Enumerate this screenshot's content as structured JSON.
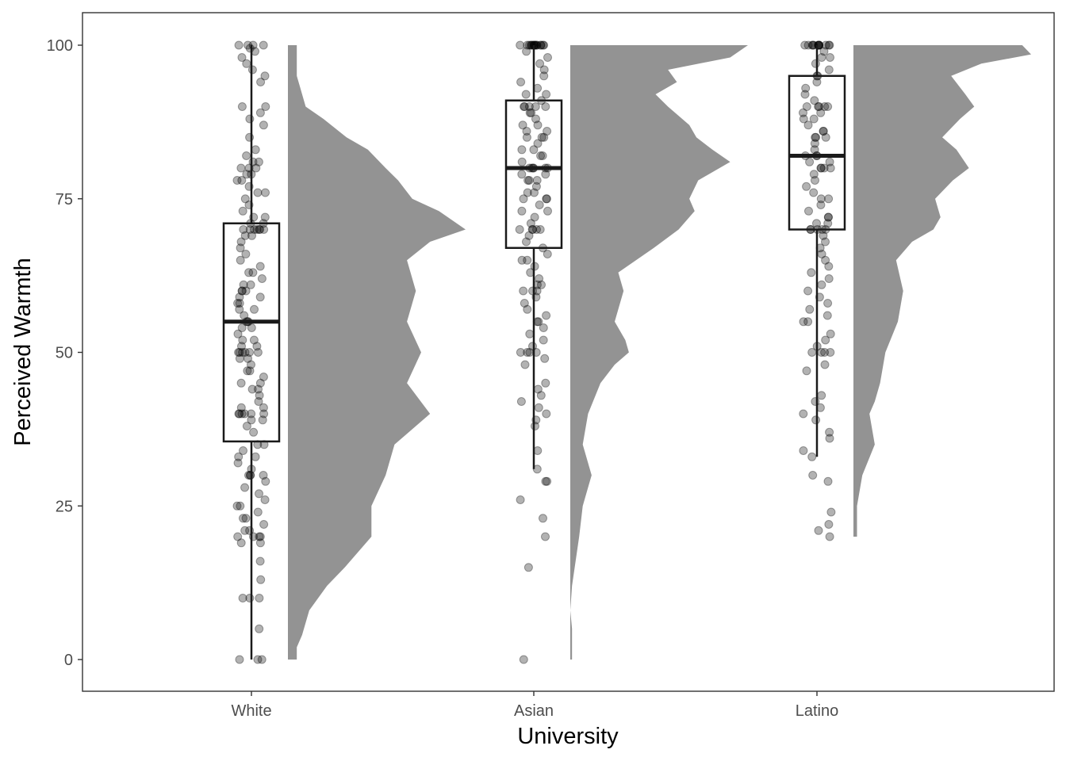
{
  "chart_data": {
    "type": "raincloud",
    "title": "",
    "xlabel": "University",
    "ylabel": "Perceived Warmth",
    "ylim": [
      -5,
      105
    ],
    "yticks": [
      0,
      25,
      50,
      75,
      100
    ],
    "categories": [
      "White",
      "Asian",
      "Latino"
    ],
    "grid": false,
    "colors": {
      "violin": "#939393",
      "points": "#000000",
      "box": "#1a1a1a"
    },
    "boxplots": [
      {
        "category": "White",
        "whisker_low": 0,
        "q1": 35.5,
        "median": 55,
        "q3": 71,
        "whisker_high": 100
      },
      {
        "category": "Asian",
        "whisker_low": 31,
        "q1": 67,
        "median": 80,
        "q3": 91,
        "whisker_high": 100
      },
      {
        "category": "Latino",
        "whisker_low": 33,
        "q1": 70,
        "median": 82,
        "q3": 95,
        "whisker_high": 100
      }
    ],
    "density": [
      {
        "category": "White",
        "range": [
          0,
          100
        ],
        "y": [
          0,
          2,
          4,
          8,
          12,
          15,
          20,
          25,
          30,
          35,
          40,
          45,
          50,
          55,
          60,
          65,
          68,
          70,
          73,
          75,
          78,
          80,
          83,
          85,
          88,
          90,
          93,
          95,
          98,
          100
        ],
        "width": [
          0.05,
          0.05,
          0.08,
          0.12,
          0.22,
          0.32,
          0.47,
          0.47,
          0.55,
          0.6,
          0.8,
          0.67,
          0.75,
          0.67,
          0.72,
          0.67,
          0.8,
          1.0,
          0.85,
          0.7,
          0.62,
          0.55,
          0.45,
          0.33,
          0.2,
          0.1,
          0.07,
          0.05,
          0.05,
          0.05
        ]
      },
      {
        "category": "Asian",
        "range": [
          0,
          100
        ],
        "y": [
          0,
          5,
          8,
          12,
          16,
          20,
          25,
          28,
          30,
          35,
          40,
          45,
          48,
          50,
          52,
          55,
          60,
          63,
          65,
          67,
          70,
          73,
          75,
          78,
          81,
          83,
          85,
          87,
          90,
          92,
          94,
          96,
          98,
          100
        ],
        "width": [
          0.01,
          0.01,
          0.0,
          0.01,
          0.03,
          0.05,
          0.07,
          0.1,
          0.12,
          0.07,
          0.1,
          0.17,
          0.25,
          0.33,
          0.31,
          0.25,
          0.3,
          0.27,
          0.37,
          0.47,
          0.61,
          0.7,
          0.67,
          0.72,
          0.9,
          0.8,
          0.71,
          0.67,
          0.55,
          0.48,
          0.6,
          0.55,
          0.9,
          1.0
        ]
      },
      {
        "category": "Latino",
        "range": [
          20,
          100
        ],
        "y": [
          20,
          22,
          25,
          30,
          35,
          40,
          42,
          45,
          50,
          55,
          60,
          65,
          68,
          70,
          72,
          75,
          78,
          80,
          83,
          85,
          88,
          90,
          92,
          95,
          97,
          98.5,
          100
        ],
        "width": [
          0.02,
          0.02,
          0.02,
          0.05,
          0.12,
          0.09,
          0.12,
          0.15,
          0.18,
          0.25,
          0.28,
          0.24,
          0.33,
          0.45,
          0.49,
          0.46,
          0.56,
          0.65,
          0.58,
          0.5,
          0.6,
          0.68,
          0.63,
          0.55,
          0.72,
          1.0,
          0.95
        ]
      }
    ],
    "points": [
      {
        "category": "White",
        "values": [
          100,
          100,
          100,
          100,
          99.5,
          99,
          98,
          97,
          96,
          95,
          94,
          90,
          90,
          89,
          88,
          87,
          85,
          83,
          82,
          81,
          81,
          80,
          80,
          80,
          79,
          79,
          78,
          78,
          77,
          76,
          76,
          75,
          74,
          73,
          72,
          72,
          71,
          71,
          70,
          70,
          70,
          70,
          70,
          70,
          70,
          69,
          69,
          68,
          67,
          66,
          65,
          64,
          63,
          63,
          62,
          61,
          61,
          60,
          60,
          60,
          59,
          59,
          58,
          58,
          57,
          57,
          56,
          55,
          55,
          55,
          54,
          54,
          53,
          52,
          52,
          51,
          51,
          50,
          50,
          50,
          50,
          50,
          50,
          49,
          49,
          48,
          47,
          47,
          46,
          45,
          45,
          44,
          44,
          43,
          42,
          41,
          41,
          40,
          40,
          40,
          40,
          40,
          40,
          39,
          39,
          38,
          37,
          35,
          35,
          34,
          33,
          33,
          32,
          31,
          30,
          30,
          30,
          30,
          29,
          28,
          27,
          26,
          25,
          25,
          24,
          23,
          23,
          22,
          21,
          21,
          20,
          20,
          20,
          20,
          19,
          19,
          16,
          13,
          10,
          10,
          10,
          5,
          0,
          0,
          0
        ]
      },
      {
        "category": "Asian",
        "values": [
          100,
          100,
          100,
          100,
          100,
          100,
          100,
          100,
          100,
          100,
          100,
          100,
          100,
          100,
          100,
          100,
          99,
          98,
          97,
          96,
          95,
          94,
          93,
          92,
          92,
          91,
          90,
          90,
          90,
          90,
          90,
          89,
          89,
          88,
          87,
          87,
          86,
          86,
          85,
          85,
          85,
          84,
          83,
          83,
          82,
          82,
          81,
          80,
          80,
          80,
          80,
          80,
          80,
          79,
          79,
          78,
          78,
          78,
          77,
          76,
          76,
          75,
          75,
          75,
          74,
          73,
          73,
          72,
          71,
          70,
          70,
          70,
          70,
          70,
          69,
          68,
          67,
          66,
          65,
          65,
          64,
          63,
          62,
          61,
          61,
          60,
          60,
          60,
          59,
          58,
          57,
          56,
          55,
          55,
          54,
          53,
          52,
          51,
          50,
          50,
          50,
          50,
          49,
          48,
          45,
          44,
          43,
          42,
          41,
          40,
          39,
          38,
          34,
          31,
          29,
          29,
          26,
          23,
          20,
          15,
          0
        ]
      },
      {
        "category": "Latino",
        "values": [
          100,
          100,
          100,
          100,
          100,
          100,
          100,
          100,
          100,
          100,
          100,
          100,
          100,
          99,
          98,
          98,
          97,
          96,
          95,
          95,
          94,
          93,
          92,
          91,
          90,
          90,
          90,
          90,
          90,
          89,
          89,
          88,
          88,
          87,
          86,
          86,
          85,
          85,
          85,
          84,
          83,
          82,
          82,
          82,
          81,
          81,
          80,
          80,
          80,
          80,
          79,
          78,
          77,
          76,
          75,
          75,
          74,
          73,
          72,
          72,
          71,
          71,
          70,
          70,
          70,
          70,
          70,
          69,
          68,
          67,
          66,
          65,
          64,
          63,
          62,
          61,
          60,
          59,
          58,
          57,
          56,
          55,
          55,
          53,
          52,
          51,
          50,
          50,
          50,
          50,
          48,
          47,
          43,
          42,
          41,
          40,
          39,
          37,
          36,
          34,
          33,
          30,
          29,
          24,
          22,
          21,
          20
        ]
      }
    ]
  }
}
